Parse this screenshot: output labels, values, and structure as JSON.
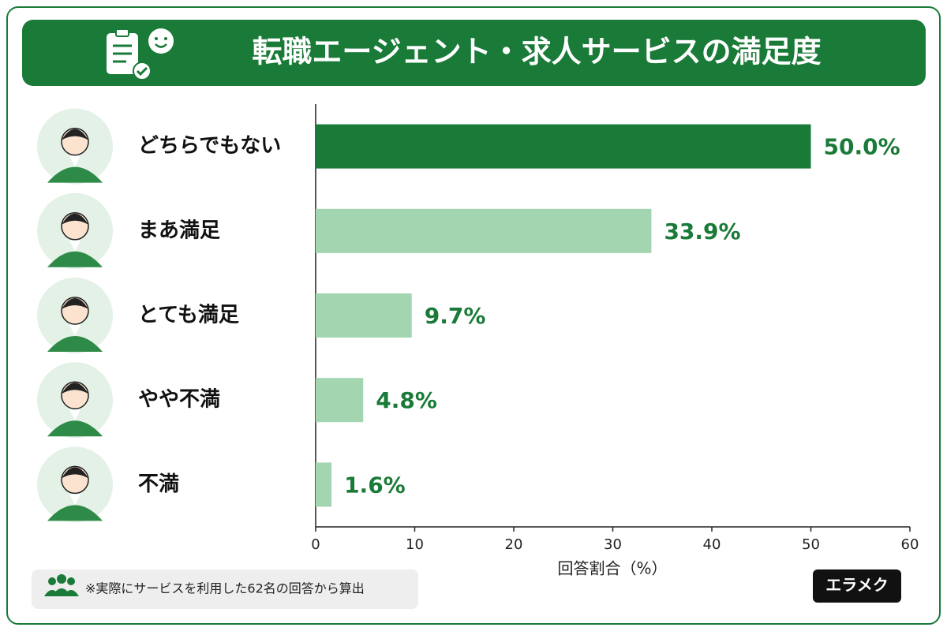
{
  "chart_data": {
    "type": "bar",
    "orientation": "horizontal",
    "title": "転職エージェント・求人サービスの満足度",
    "categories": [
      "どちらでもない",
      "まあ満足",
      "とても満足",
      "やや不満",
      "不満"
    ],
    "values": [
      50.0,
      33.9,
      9.7,
      4.8,
      1.6
    ],
    "value_labels": [
      "50.0%",
      "33.9%",
      "9.7%",
      "4.8%",
      "1.6%"
    ],
    "colors": [
      "#1a7a38",
      "#a3d6b0",
      "#a3d6b0",
      "#a3d6b0",
      "#a3d6b0"
    ],
    "xlim": [
      0,
      60
    ],
    "xticks": [
      0,
      10,
      20,
      30,
      40,
      50,
      60
    ],
    "xlabel": "回答割合（%）",
    "note": "※実際にサービスを利用した62名の回答から算出",
    "brand": "エラメク"
  }
}
